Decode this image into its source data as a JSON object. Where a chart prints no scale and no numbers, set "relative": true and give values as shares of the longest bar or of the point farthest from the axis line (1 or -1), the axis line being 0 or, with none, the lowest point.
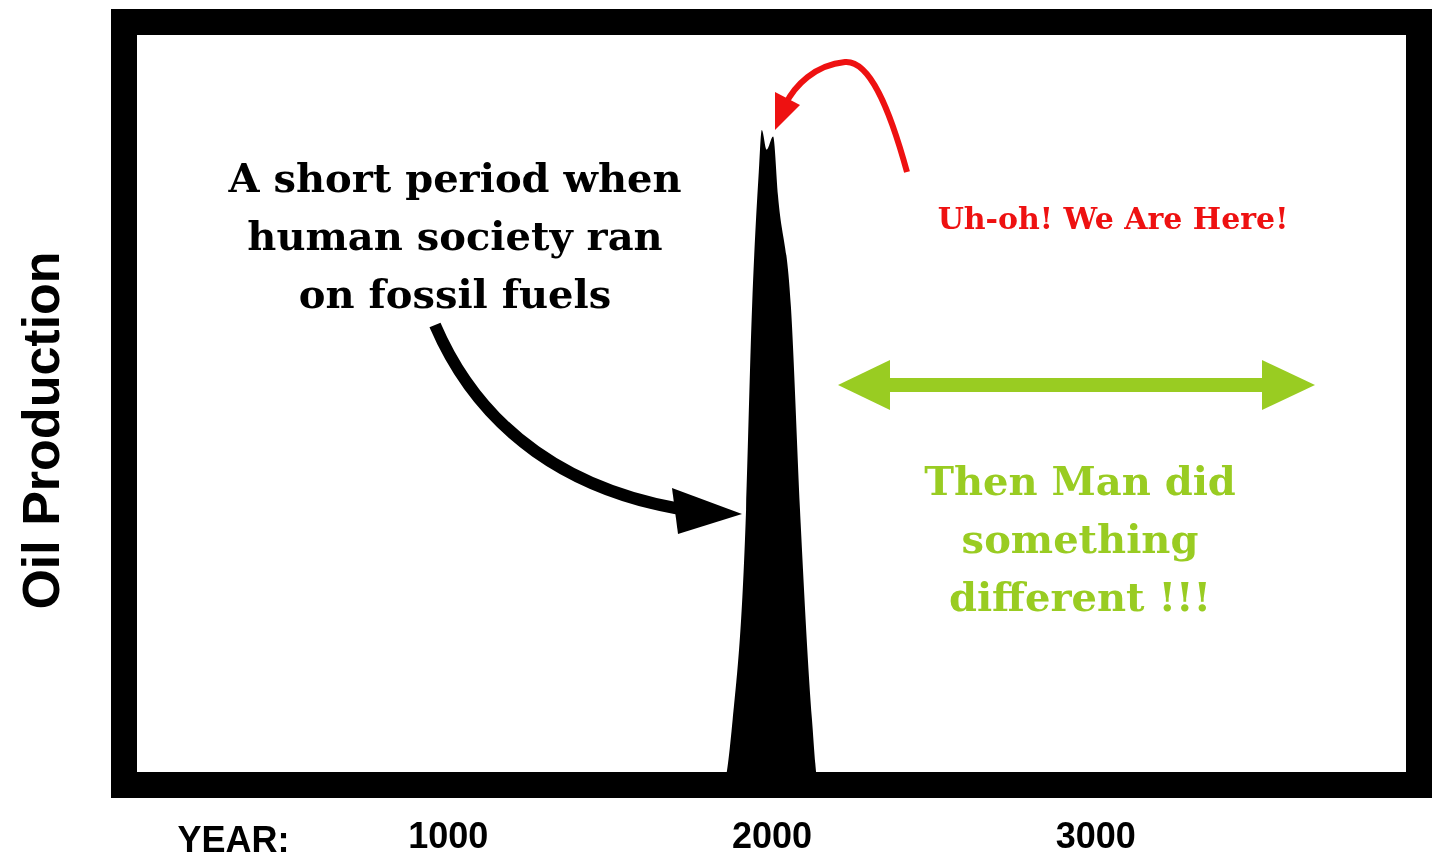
{
  "chart_data": {
    "type": "area",
    "xlabel": "YEAR:",
    "ylabel": "Oil Production",
    "relative": true,
    "color": "#000000",
    "x": [
      0,
      1850,
      1880,
      1920,
      1940,
      1960,
      1970,
      1985,
      2005,
      2020,
      2060,
      2090,
      2125,
      2145,
      4000
    ],
    "values": [
      0,
      0,
      0.1,
      0.4,
      0.73,
      0.93,
      1,
      0.97,
      0.99,
      0.9,
      0.73,
      0.4,
      0.1,
      0,
      0
    ],
    "xlim": [
      0,
      4000
    ],
    "xticks": [
      1000,
      2000,
      3000
    ],
    "annotations": [
      "A short period when\nhuman society ran\non fossil fuels",
      "Uh-oh! We Are Here!",
      "Then Man did\nsomething\ndifferent !!!"
    ]
  }
}
